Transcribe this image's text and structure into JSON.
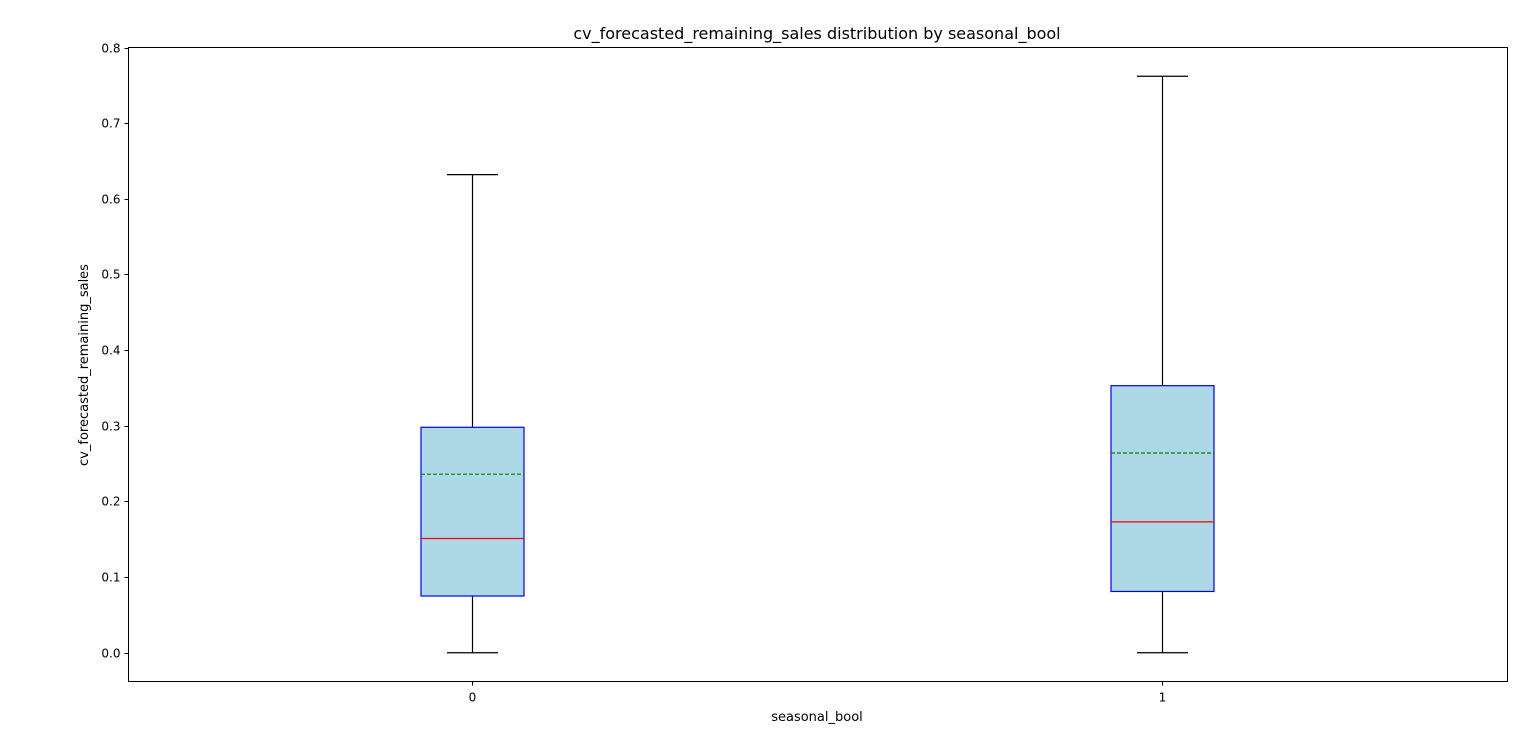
{
  "chart_data": {
    "type": "box",
    "title": "cv_forecasted_remaining_sales distribution by seasonal_bool",
    "xlabel": "seasonal_bool",
    "ylabel": "cv_forecasted_remaining_sales",
    "categories": [
      "0",
      "1"
    ],
    "ylim": [
      -0.038,
      0.8
    ],
    "yticks": [
      0.0,
      0.1,
      0.2,
      0.3,
      0.4,
      0.5,
      0.6,
      0.7,
      0.8
    ],
    "ytick_labels": [
      "0.0",
      "0.1",
      "0.2",
      "0.3",
      "0.4",
      "0.5",
      "0.6",
      "0.7",
      "0.8"
    ],
    "grid": false,
    "boxes": [
      {
        "category": "0",
        "whisker_low": 0.0,
        "q1": 0.075,
        "median": 0.151,
        "mean": 0.236,
        "q3": 0.298,
        "whisker_high": 0.632
      },
      {
        "category": "1",
        "whisker_low": 0.0,
        "q1": 0.081,
        "median": 0.173,
        "mean": 0.264,
        "q3": 0.353,
        "whisker_high": 0.762
      }
    ],
    "colors": {
      "box_fill": "#add8e6",
      "box_edge": "#0000ff",
      "median": "#ff0000",
      "mean": "#008000",
      "whisker": "#000000"
    }
  }
}
